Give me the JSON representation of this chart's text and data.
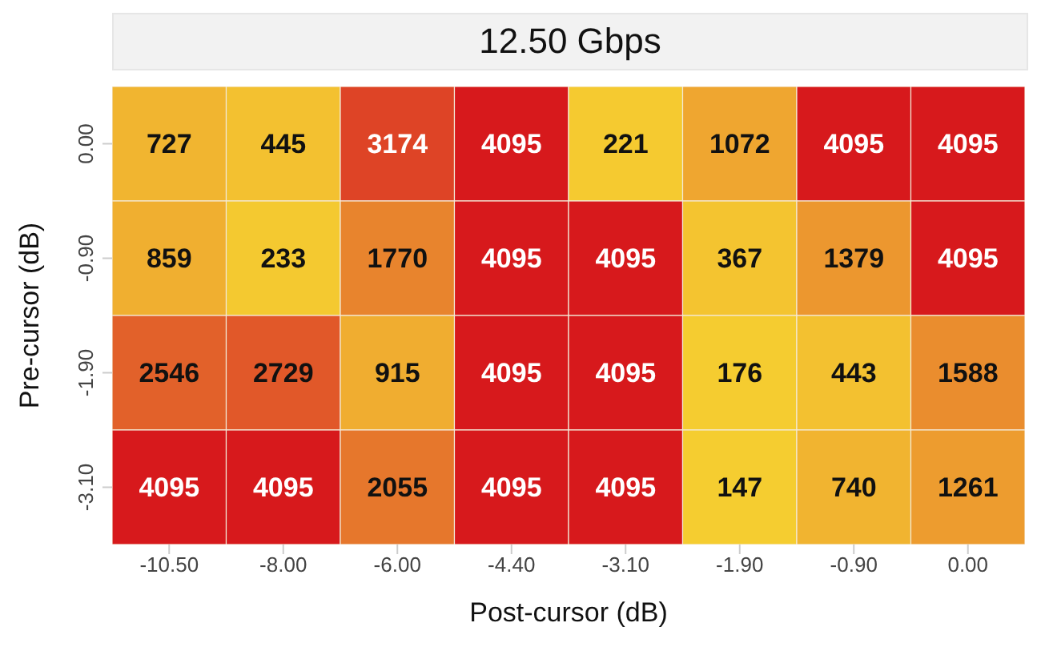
{
  "chart_data": {
    "type": "heatmap",
    "title": "12.50 Gbps",
    "data_labels": true,
    "xlabel": "Post-cursor (dB)",
    "ylabel": "Pre-cursor (dB)",
    "categories": [
      "-10.50",
      "-8.00",
      "-6.00",
      "-4.40",
      "-3.10",
      "-1.90",
      "-0.90",
      "0.00"
    ],
    "y_categories": [
      "0.00",
      "-0.90",
      "-1.90",
      "-3.10"
    ],
    "cells": [
      [
        727,
        445,
        3174,
        4095,
        221,
        1072,
        4095,
        4095
      ],
      [
        859,
        233,
        1770,
        4095,
        4095,
        367,
        1379,
        4095
      ],
      [
        2546,
        2729,
        915,
        4095,
        4095,
        176,
        443,
        1588
      ],
      [
        4095,
        4095,
        2055,
        4095,
        4095,
        147,
        740,
        1261
      ]
    ]
  }
}
